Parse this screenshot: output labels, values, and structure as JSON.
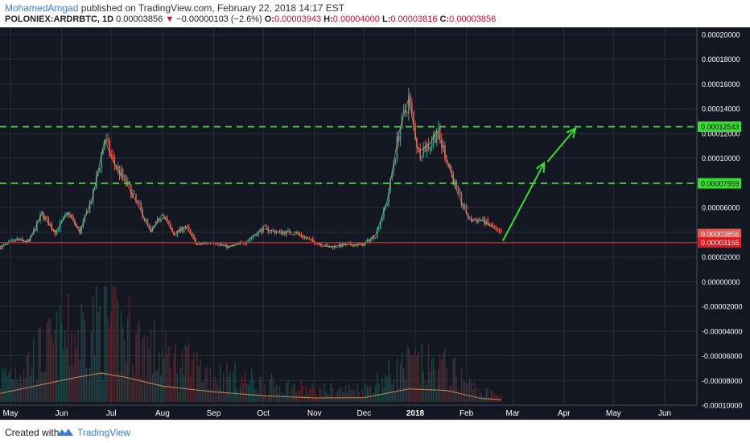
{
  "header": {
    "author": "MohamedAmgad",
    "published_text": "published on TradingView.com, February 22, 2018 14:17 EST",
    "symbol": "POLONIEX:ARDRBTC, 1D",
    "last": "0.00003856",
    "change_arrow": "▼",
    "change": "−0.00000103 (−2.6%)",
    "open_label": "O:",
    "open": "0.00003943",
    "high_label": "H:",
    "high": "0.00004000",
    "low_label": "L:",
    "low": "0.00003816",
    "close_label": "C:",
    "close": "0.00003856"
  },
  "footer": {
    "created_with": "Created with",
    "brand": "TradingView"
  },
  "colors": {
    "background": "#131722",
    "grid": "#2a2e39",
    "up": "#26a69a",
    "down": "#ef5350",
    "support": "#e5151c",
    "resistance": "#35e02b",
    "volume_ma": "#c98a5a",
    "axis_text": "#ffffff"
  },
  "chart_data": {
    "type": "candlestick",
    "x_tick_labels": [
      "May",
      "Jun",
      "Jul",
      "Aug",
      "Sep",
      "Oct",
      "Nov",
      "Dec",
      "2018",
      "Feb",
      "Mar",
      "Apr",
      "May",
      "Jun"
    ],
    "x_tick_dates": [
      "2017-05-01",
      "2017-06-01",
      "2017-07-01",
      "2017-08-01",
      "2017-09-01",
      "2017-10-01",
      "2017-11-01",
      "2017-12-01",
      "2018-01-01",
      "2018-02-01",
      "2018-03-01",
      "2018-04-01",
      "2018-05-01",
      "2018-06-01"
    ],
    "y_tick_labels": [
      "0.00020000",
      "0.00018000",
      "0.00016000",
      "0.00014000",
      "0.00012000",
      "0.00010000",
      "0.00008000",
      "0.00006000",
      "0.00004000",
      "0.00002000",
      "0.00000000",
      "-0.00002000",
      "-0.00004000",
      "-0.00006000",
      "-0.00008000",
      "-0.00010000"
    ],
    "y_ticks": [
      0.0002,
      0.00018,
      0.00016,
      0.00014,
      0.00012,
      0.0001,
      8e-05,
      6e-05,
      4e-05,
      2e-05,
      0,
      -2e-05,
      -4e-05,
      -6e-05,
      -8e-05,
      -0.0001
    ],
    "ylim": [
      -0.0001,
      0.0002
    ],
    "price_path": [
      [
        "2017-04-25",
        2.8e-05
      ],
      [
        "2017-05-05",
        3.4e-05
      ],
      [
        "2017-05-12",
        3.2e-05
      ],
      [
        "2017-05-20",
        5.5e-05
      ],
      [
        "2017-05-28",
        4e-05
      ],
      [
        "2017-06-05",
        5.6e-05
      ],
      [
        "2017-06-12",
        4e-05
      ],
      [
        "2017-06-20",
        7e-05
      ],
      [
        "2017-06-27",
        0.000115
      ],
      [
        "2017-07-03",
        9.5e-05
      ],
      [
        "2017-07-10",
        8e-05
      ],
      [
        "2017-07-18",
        6e-05
      ],
      [
        "2017-07-25",
        4e-05
      ],
      [
        "2017-08-01",
        5.5e-05
      ],
      [
        "2017-08-08",
        3.8e-05
      ],
      [
        "2017-08-15",
        4.5e-05
      ],
      [
        "2017-08-22",
        3e-05
      ],
      [
        "2017-09-01",
        3.2e-05
      ],
      [
        "2017-09-10",
        2.8e-05
      ],
      [
        "2017-09-20",
        3.2e-05
      ],
      [
        "2017-10-01",
        4.3e-05
      ],
      [
        "2017-10-10",
        4e-05
      ],
      [
        "2017-10-20",
        4e-05
      ],
      [
        "2017-11-01",
        3.2e-05
      ],
      [
        "2017-11-10",
        2.8e-05
      ],
      [
        "2017-11-20",
        3e-05
      ],
      [
        "2017-12-01",
        3e-05
      ],
      [
        "2017-12-08",
        3.8e-05
      ],
      [
        "2017-12-15",
        6.5e-05
      ],
      [
        "2017-12-22",
        0.00012
      ],
      [
        "2017-12-28",
        0.000148
      ],
      [
        "2018-01-03",
        0.000105
      ],
      [
        "2018-01-10",
        0.000112
      ],
      [
        "2018-01-14",
        0.000122
      ],
      [
        "2018-01-20",
        0.0001
      ],
      [
        "2018-01-27",
        7e-05
      ],
      [
        "2018-02-03",
        5e-05
      ],
      [
        "2018-02-10",
        5e-05
      ],
      [
        "2018-02-16",
        4.5e-05
      ],
      [
        "2018-02-22",
        3.856e-05
      ]
    ],
    "horizontal_levels": [
      {
        "label": "0.00012543",
        "value": 0.00012543,
        "style": "dashed",
        "color": "#35e02b"
      },
      {
        "label": "0.00007959",
        "value": 7.959e-05,
        "style": "dashed",
        "color": "#35e02b"
      },
      {
        "label": "0.00003165",
        "value": 3.165e-05,
        "style": "solid",
        "color": "#e5151c"
      }
    ],
    "last_price": {
      "label": "0.00003856",
      "value": 3.856e-05
    },
    "projection_arrows": [
      {
        "from": [
          "2018-02-23",
          3.3e-05
        ],
        "to": [
          "2018-03-20",
          9.6e-05
        ]
      },
      {
        "from": [
          "2018-03-22",
          9.7e-05
        ],
        "to": [
          "2018-04-08",
          0.000124
        ]
      }
    ],
    "volume_ma_path": [
      [
        "2017-04-25",
        0.3
      ],
      [
        "2017-05-20",
        0.6
      ],
      [
        "2017-06-10",
        0.85
      ],
      [
        "2017-06-25",
        1.0
      ],
      [
        "2017-07-10",
        0.85
      ],
      [
        "2017-08-01",
        0.55
      ],
      [
        "2017-09-01",
        0.35
      ],
      [
        "2017-10-01",
        0.22
      ],
      [
        "2017-11-01",
        0.14
      ],
      [
        "2017-12-01",
        0.15
      ],
      [
        "2017-12-28",
        0.45
      ],
      [
        "2018-01-20",
        0.4
      ],
      [
        "2018-02-10",
        0.12
      ],
      [
        "2018-02-22",
        0.08
      ]
    ]
  }
}
